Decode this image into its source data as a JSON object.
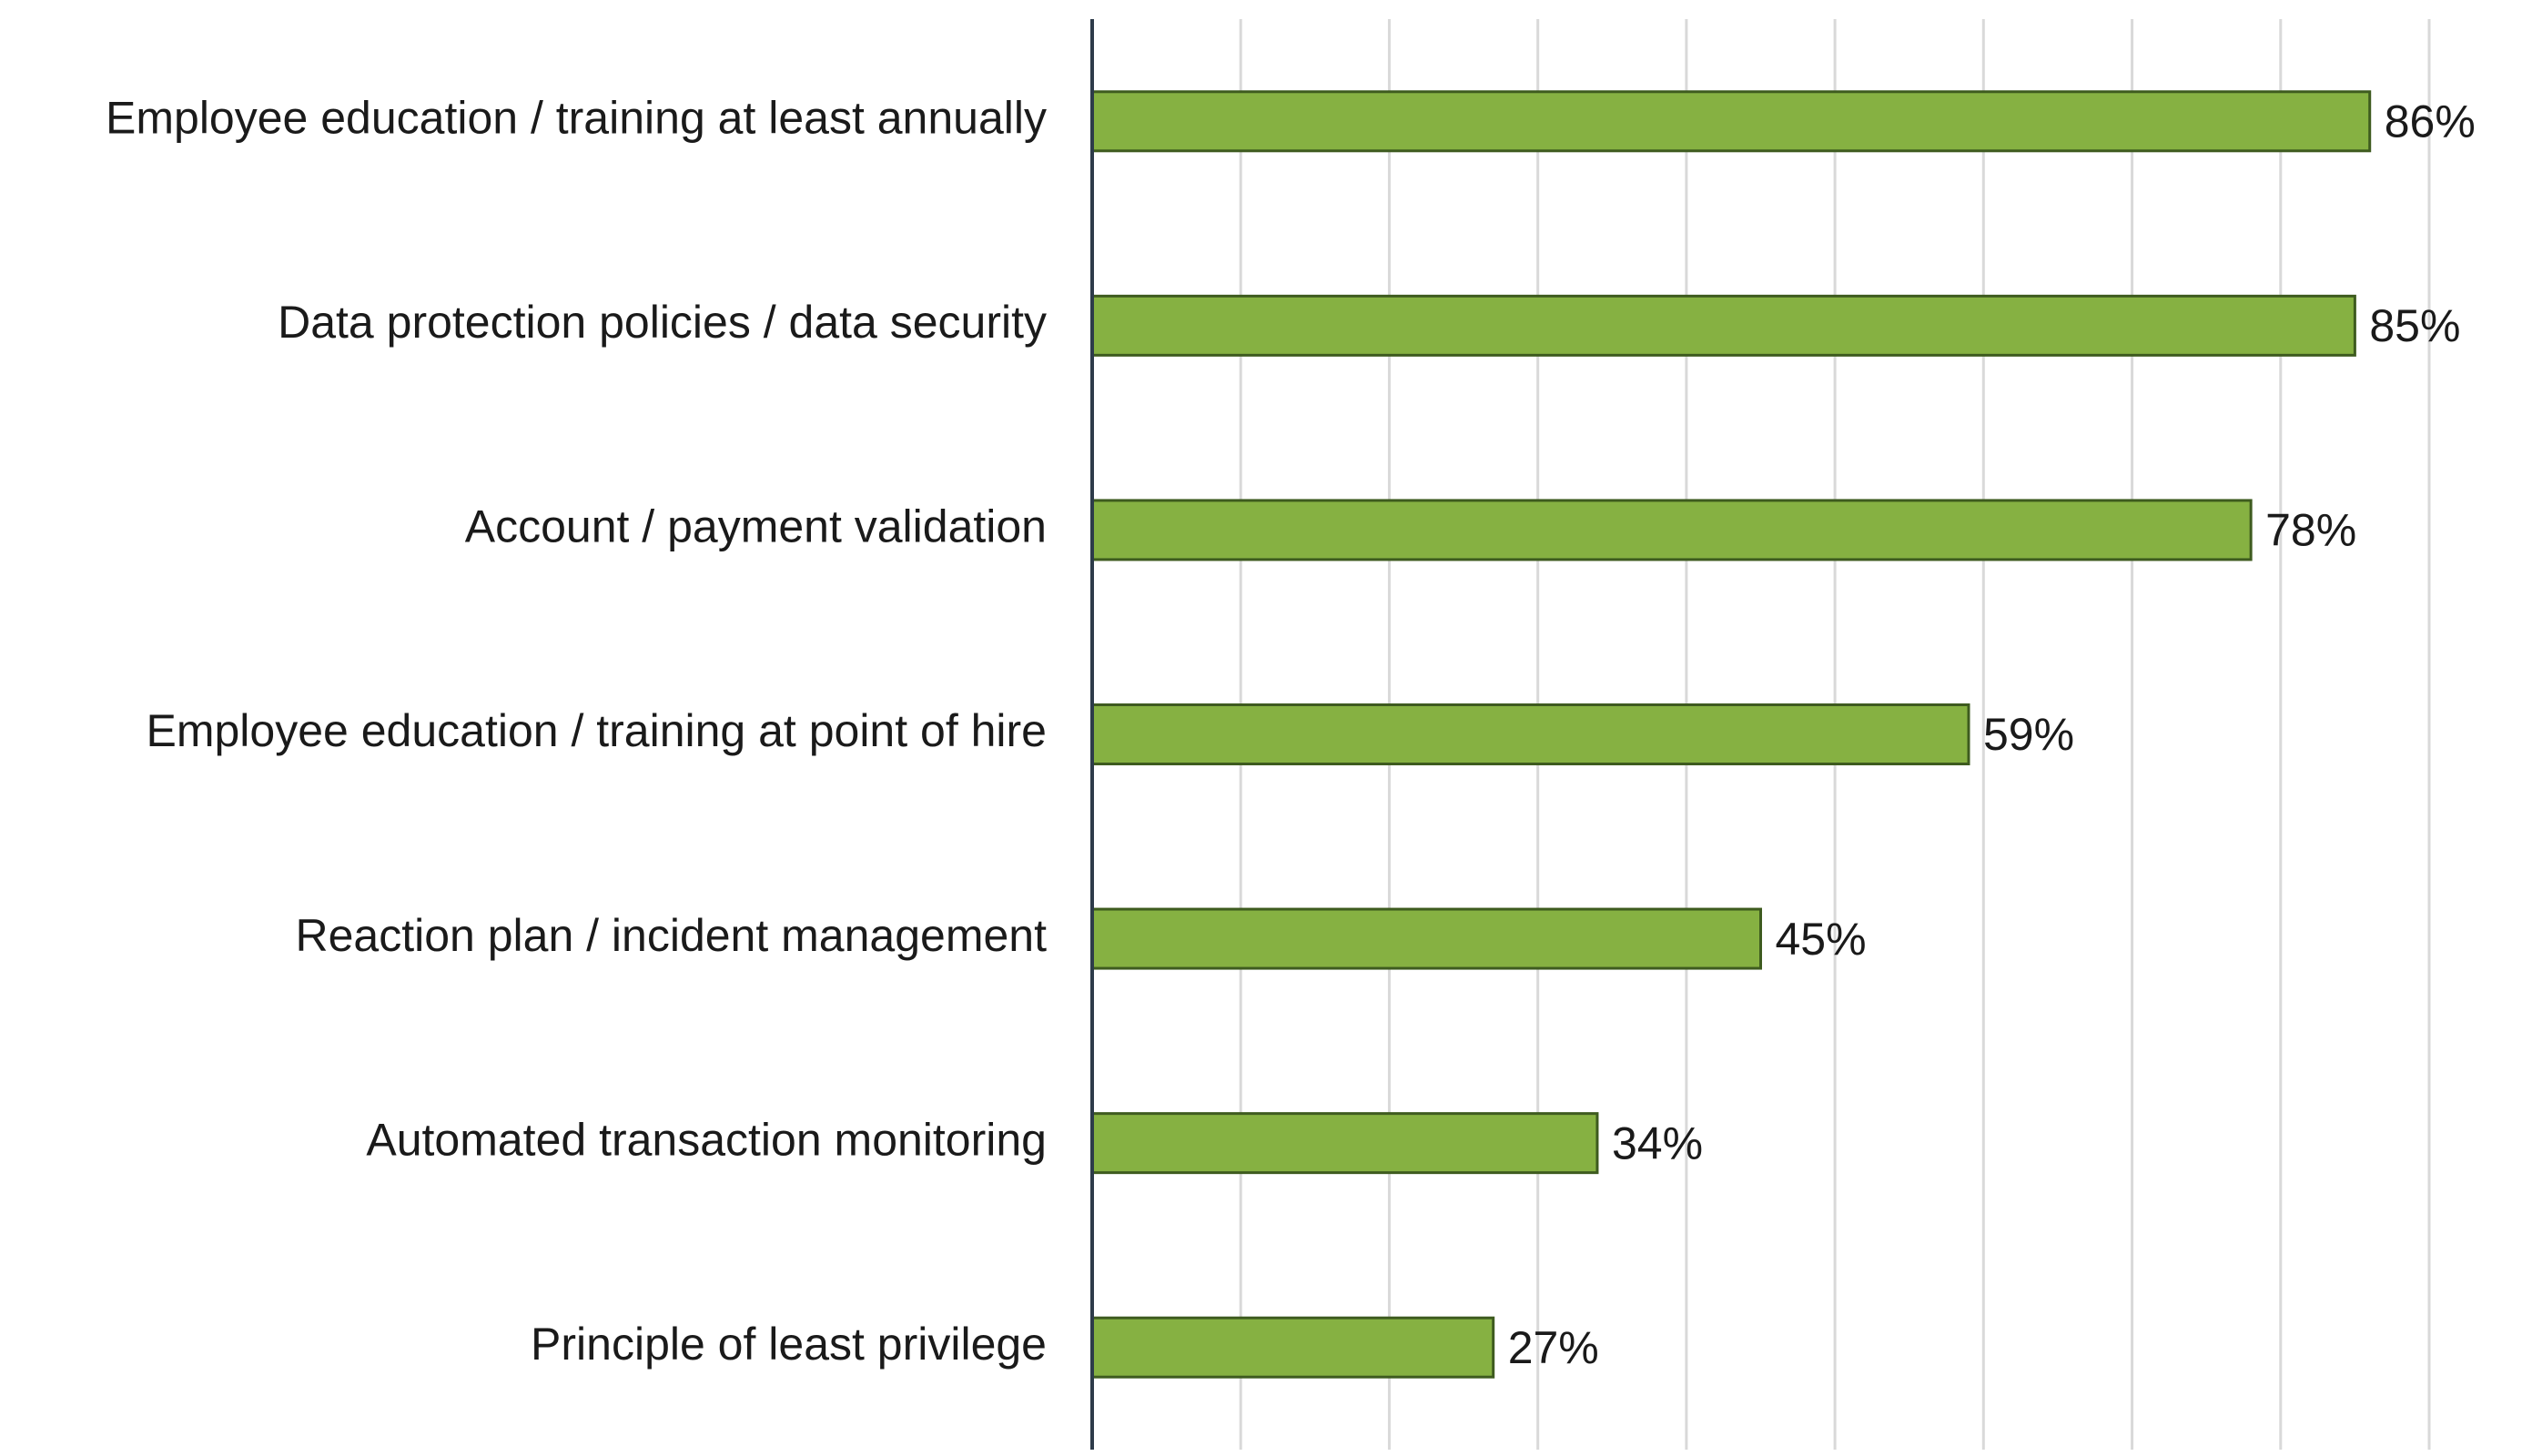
{
  "chart_data": {
    "type": "bar",
    "orientation": "horizontal",
    "categories": [
      "Employee education / training at least annually",
      "Data protection policies / data security",
      "Account / payment validation",
      "Employee education / training at point of hire",
      "Reaction plan / incident management",
      "Automated transaction monitoring",
      "Principle of least privilege"
    ],
    "values": [
      86,
      85,
      78,
      59,
      45,
      34,
      27
    ],
    "value_labels": [
      "86%",
      "85%",
      "78%",
      "59%",
      "45%",
      "34%",
      "27%"
    ],
    "color": "#86b142",
    "xlim": [
      0,
      90
    ],
    "xticks": [
      0,
      10,
      20,
      30,
      40,
      50,
      60,
      70,
      80,
      90
    ],
    "grid": true
  }
}
